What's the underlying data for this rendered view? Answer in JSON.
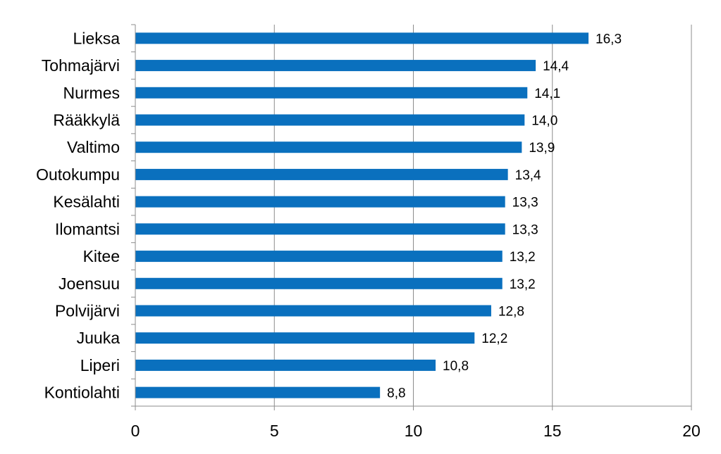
{
  "chart_data": {
    "type": "bar",
    "orientation": "horizontal",
    "title": "",
    "xlabel": "",
    "ylabel": "",
    "xlim": [
      0,
      20
    ],
    "xticks": [
      0,
      5,
      10,
      15,
      20
    ],
    "grid": true,
    "bar_color": "#0A70BE",
    "categories": [
      "Lieksa",
      "Tohmajärvi",
      "Nurmes",
      "Rääkkylä",
      "Valtimo",
      "Outokumpu",
      "Kesälahti",
      "Ilomantsi",
      "Kitee",
      "Joensuu",
      "Polvijärvi",
      "Juuka",
      "Liperi",
      "Kontiolahti"
    ],
    "values": [
      16.3,
      14.4,
      14.1,
      14.0,
      13.9,
      13.4,
      13.3,
      13.3,
      13.2,
      13.2,
      12.8,
      12.2,
      10.8,
      8.8
    ],
    "data_labels": [
      "16,3",
      "14,4",
      "14,1",
      "14,0",
      "13,9",
      "13,4",
      "13,3",
      "13,3",
      "13,2",
      "13,2",
      "12,8",
      "12,2",
      "10,8",
      "8,8"
    ]
  }
}
